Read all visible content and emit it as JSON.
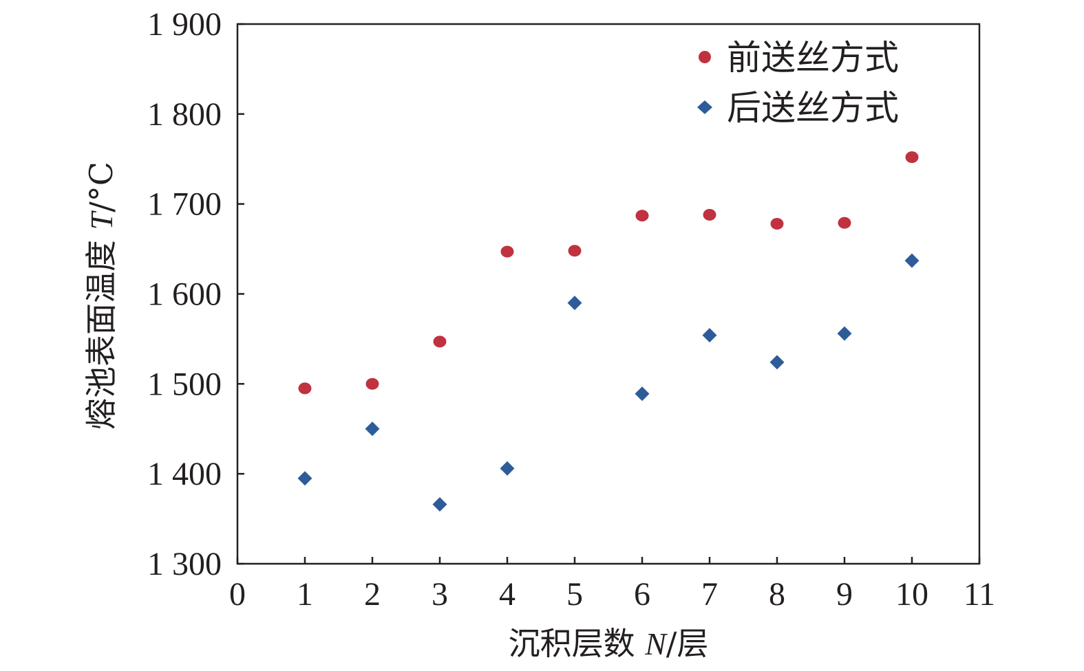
{
  "chart_data": {
    "type": "scatter",
    "title": "",
    "xlabel": {
      "prefix": "沉积层数 ",
      "var": "N",
      "suffix": "/层"
    },
    "ylabel": {
      "prefix": "熔池表面温度 ",
      "var": "T",
      "suffix": "/°C"
    },
    "xlim": [
      0,
      11
    ],
    "ylim": [
      1300,
      1900
    ],
    "x_ticks": [
      0,
      1,
      2,
      3,
      4,
      5,
      6,
      7,
      8,
      9,
      10,
      11
    ],
    "x_tick_labels": [
      "0",
      "1",
      "2",
      "3",
      "4",
      "5",
      "6",
      "7",
      "8",
      "9",
      "10",
      "11"
    ],
    "y_ticks": [
      1300,
      1400,
      1500,
      1600,
      1700,
      1800,
      1900
    ],
    "y_tick_labels": [
      "1 300",
      "1 400",
      "1 500",
      "1 600",
      "1 700",
      "1 800",
      "1 900"
    ],
    "grid": false,
    "legend_position": "top-right",
    "series": [
      {
        "name": "前送丝方式",
        "marker": "circle",
        "color": "#c0323f",
        "x": [
          1,
          2,
          3,
          4,
          5,
          6,
          7,
          8,
          9,
          10
        ],
        "y": [
          1495,
          1500,
          1547,
          1647,
          1648,
          1687,
          1688,
          1678,
          1679,
          1752
        ]
      },
      {
        "name": "后送丝方式",
        "marker": "diamond",
        "color": "#2d5c99",
        "x": [
          1,
          2,
          3,
          4,
          5,
          6,
          7,
          8,
          9,
          10
        ],
        "y": [
          1395,
          1450,
          1366,
          1406,
          1590,
          1489,
          1554,
          1524,
          1556,
          1637
        ]
      }
    ]
  }
}
